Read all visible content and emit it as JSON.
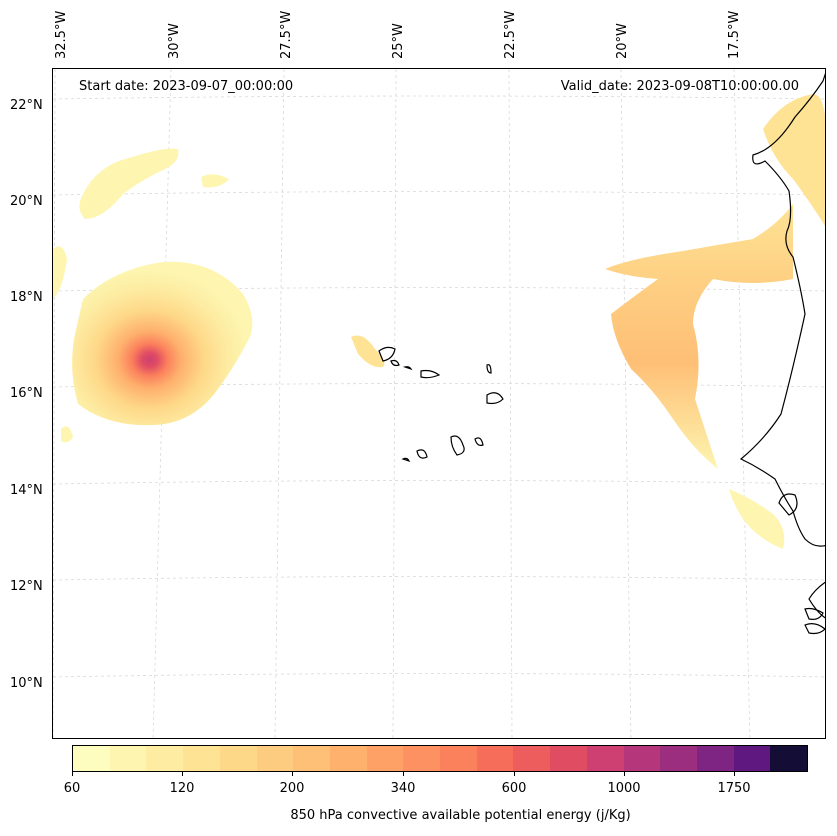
{
  "map": {
    "start_date": "Start date: 2023-09-07_00:00:00",
    "valid_date": "Valid_date: 2023-09-08T10:00:00.00",
    "lon_labels": [
      "32.5°W",
      "30°W",
      "27.5°W",
      "25°W",
      "22.5°W",
      "20°W",
      "17.5°W"
    ],
    "lat_labels": [
      "22°N",
      "20°N",
      "18°N",
      "16°N",
      "14°N",
      "12°N",
      "10°N"
    ],
    "colormap": "magma_r",
    "coastline_color": "#000000"
  },
  "colorbar": {
    "label": "850 hPa convective available potential energy (j/Kg)",
    "ticks": [
      "60",
      "120",
      "200",
      "340",
      "600",
      "1000",
      "1750"
    ],
    "colors": [
      "#fcfdbf",
      "#fdf5b0",
      "#fdeca2",
      "#fee395",
      "#fed889",
      "#fecc80",
      "#febf76",
      "#feb06d",
      "#fea166",
      "#fd9161",
      "#fb805c",
      "#f66e5a",
      "#ee5d5d",
      "#e04d63",
      "#cd4071",
      "#b5367a",
      "#9c2e7f",
      "#7e2482",
      "#5f187f",
      "#140e36"
    ]
  }
}
